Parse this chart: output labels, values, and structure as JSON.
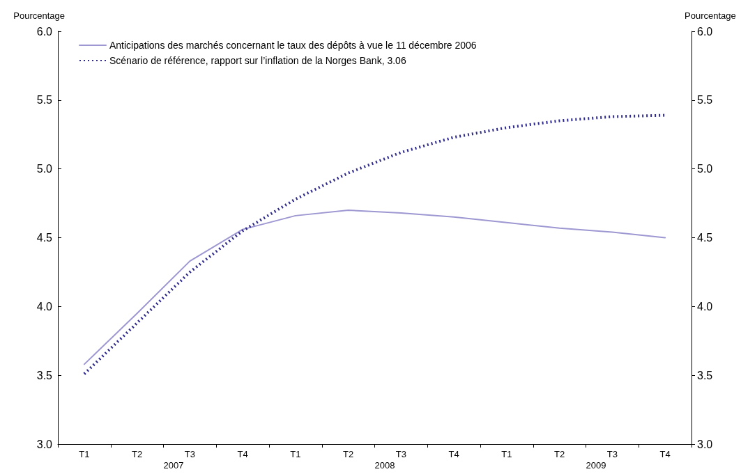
{
  "chart_data": {
    "type": "line",
    "ylabel": "Pourcentage",
    "y2label": "Pourcentage",
    "categories": [
      "T1",
      "T2",
      "T3",
      "T4",
      "T1",
      "T2",
      "T3",
      "T4",
      "T1",
      "T2",
      "T3",
      "T4"
    ],
    "annotations": [
      "2007",
      "2008",
      "2009"
    ],
    "series": [
      {
        "name": "Anticipations des marchés concernant le taux des dépôts à vue le 11 décembre 2006",
        "color": "#9d97d2",
        "line_style": "solid",
        "values": [
          3.58,
          3.95,
          4.33,
          4.56,
          4.66,
          4.7,
          4.68,
          4.65,
          4.61,
          4.57,
          4.54,
          4.5
        ]
      },
      {
        "name": "Scénario de référence, rapport sur l’inflation de la Norges Bank, 3.06",
        "color": "#2e2a8c",
        "line_style": "dotted",
        "values": [
          3.51,
          3.88,
          4.25,
          4.55,
          4.78,
          4.97,
          5.12,
          5.23,
          5.3,
          5.35,
          5.38,
          5.39
        ]
      }
    ],
    "ylim": [
      3,
      6
    ],
    "yticks": [
      {
        "value": 3,
        "label": "3.0"
      },
      {
        "value": 3.5,
        "label": "3.5"
      },
      {
        "value": 4,
        "label": "4.0"
      },
      {
        "value": 4.5,
        "label": "4.5"
      },
      {
        "value": 5,
        "label": "5.0"
      },
      {
        "value": 5.5,
        "label": "5.5"
      },
      {
        "value": 6,
        "label": "6.0"
      }
    ],
    "y2lim": [
      3,
      6
    ],
    "y2ticks": [
      {
        "value": 3,
        "label": "3.0"
      },
      {
        "value": 3.5,
        "label": "3.5"
      },
      {
        "value": 4,
        "label": "4.0"
      },
      {
        "value": 4.5,
        "label": "4.5"
      },
      {
        "value": 5,
        "label": "5.0"
      },
      {
        "value": 5.5,
        "label": "5.5"
      },
      {
        "value": 6,
        "label": "6.0"
      }
    ],
    "grid": false,
    "legend": "top left",
    "marker": "none"
  }
}
